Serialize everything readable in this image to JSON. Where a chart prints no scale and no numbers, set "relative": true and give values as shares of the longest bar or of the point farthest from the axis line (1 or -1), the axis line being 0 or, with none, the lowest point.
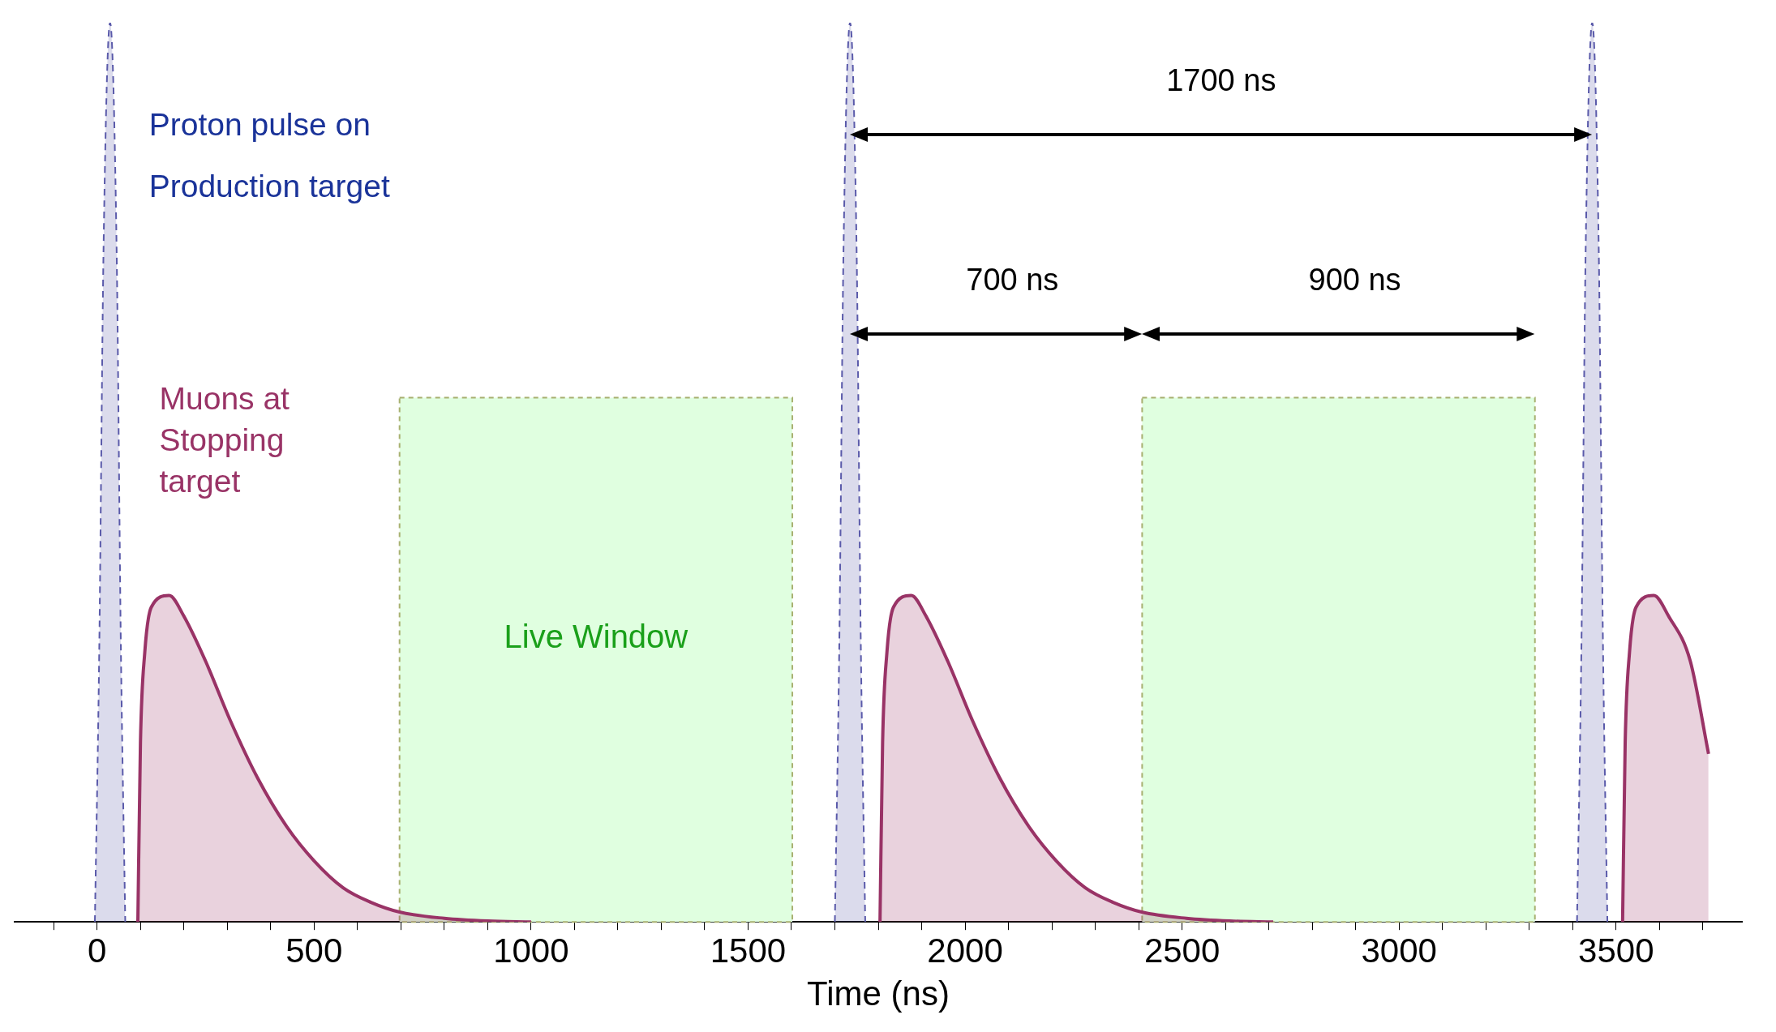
{
  "chart_data": {
    "type": "area",
    "xlabel": "Time (ns)",
    "relative": true,
    "marker": "none",
    "xlim": [
      -190,
      3790
    ],
    "xticks": [
      {
        "value": -100,
        "label": null
      },
      0,
      {
        "value": 100,
        "label": null
      },
      {
        "value": 200,
        "label": null
      },
      {
        "value": 300,
        "label": null
      },
      {
        "value": 400,
        "label": null
      },
      500,
      {
        "value": 600,
        "label": null
      },
      {
        "value": 700,
        "label": null
      },
      {
        "value": 800,
        "label": null
      },
      {
        "value": 900,
        "label": null
      },
      1000,
      {
        "value": 1100,
        "label": null
      },
      {
        "value": 1200,
        "label": null
      },
      {
        "value": 1300,
        "label": null
      },
      {
        "value": 1400,
        "label": null
      },
      1500,
      {
        "value": 1600,
        "label": null
      },
      {
        "value": 1700,
        "label": null
      },
      {
        "value": 1800,
        "label": null
      },
      {
        "value": 1900,
        "label": null
      },
      2000,
      {
        "value": 2100,
        "label": null
      },
      {
        "value": 2200,
        "label": null
      },
      {
        "value": 2300,
        "label": null
      },
      {
        "value": 2400,
        "label": null
      },
      2500,
      {
        "value": 2600,
        "label": null
      },
      {
        "value": 2700,
        "label": null
      },
      {
        "value": 2800,
        "label": null
      },
      {
        "value": 2900,
        "label": null
      },
      3000,
      {
        "value": 3100,
        "label": null
      },
      {
        "value": 3200,
        "label": null
      },
      {
        "value": 3300,
        "label": null
      },
      {
        "value": 3400,
        "label": null
      },
      3500,
      {
        "value": 3600,
        "label": null
      },
      {
        "value": 3700,
        "label": null
      }
    ],
    "series": [
      {
        "name": "Proton pulse on Production target",
        "color": "#5a5aaa",
        "line_style": "dashed",
        "x": [
          -5,
          5,
          15,
          30,
          45,
          55,
          65,
          70,
          1700,
          1710,
          1720,
          1735,
          1750,
          1760,
          1770,
          1775,
          3410,
          3420,
          3430,
          3445,
          3460,
          3470,
          3480
        ],
        "values": [
          0,
          0.3,
          0.75,
          1,
          0.75,
          0.3,
          0,
          null,
          0,
          0.3,
          0.75,
          1,
          0.75,
          0.3,
          0,
          null,
          0,
          0.3,
          0.75,
          1,
          0.75,
          0.3,
          0
        ]
      },
      {
        "name": "Muons at Stopping target",
        "color": "#993366",
        "line_style": "solid",
        "x": [
          94,
          100,
          110,
          125,
          166,
          200,
          250,
          307,
          370,
          437,
          500,
          567,
          630,
          697,
          800,
          900,
          1000,
          1050,
          1804,
          1810,
          1820,
          1835,
          1876,
          1910,
          1960,
          2017,
          2080,
          2147,
          2210,
          2277,
          2340,
          2407,
          2510,
          2610,
          2710,
          2760,
          3515,
          3521,
          3531,
          3546,
          3587,
          3621,
          3671,
          3713
        ],
        "values": [
          0,
          0.2,
          0.3,
          0.35,
          0.363,
          0.34,
          0.29,
          0.224,
          0.16,
          0.106,
          0.068,
          0.038,
          0.022,
          0.011,
          0.004,
          0.001,
          0,
          null,
          0,
          0.2,
          0.3,
          0.35,
          0.363,
          0.34,
          0.29,
          0.224,
          0.16,
          0.106,
          0.068,
          0.038,
          0.022,
          0.011,
          0.004,
          0.001,
          0,
          null,
          0,
          0.2,
          0.3,
          0.35,
          0.363,
          0.34,
          0.29,
          0.187
        ]
      }
    ],
    "bands": [
      {
        "axis": "x",
        "from": 697,
        "to": 1602,
        "label": "Live Window",
        "color": "#e0ffe0"
      },
      {
        "axis": "x",
        "from": 2408,
        "to": 3313,
        "color": "#e0ffe0"
      }
    ],
    "annotations": [
      "1700 ns",
      "700 ns",
      "900 ns"
    ]
  }
}
